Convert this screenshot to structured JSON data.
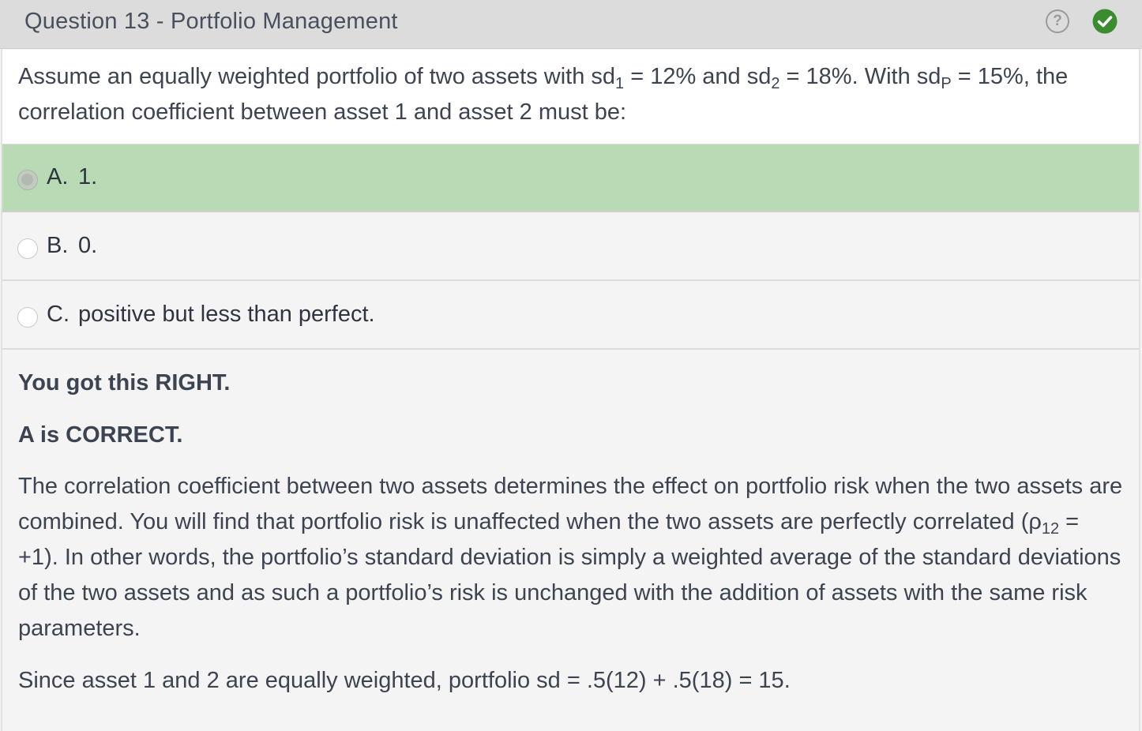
{
  "header": {
    "title": "Question 13 - Portfolio Management",
    "help_glyph": "?",
    "help_icon": "question-circle-icon",
    "status_icon": "check-circle-icon",
    "status_color": "#3a8c2f"
  },
  "question": {
    "part1": "Assume an equally weighted portfolio of two assets with sd",
    "sub1": "1",
    "part2": " = 12% and sd",
    "sub2": "2",
    "part3": " = 18%.  With sd",
    "subP": "P",
    "part4": " = 15%, the correlation coefficient between asset 1 and asset 2 must be:"
  },
  "options": [
    {
      "letter": "A.",
      "text": "1.",
      "selected": true,
      "highlight_color": "#b8dab5"
    },
    {
      "letter": "B.",
      "text": "0.",
      "selected": false
    },
    {
      "letter": "C.",
      "text": "positive but less than perfect.",
      "selected": false
    }
  ],
  "feedback": {
    "result": "You got this RIGHT.",
    "verdict": "A is CORRECT.",
    "explanation_part1": "The correlation coefficient between two assets determines the effect on portfolio risk when the two assets are combined.  You will find that portfolio risk is unaffected when the two assets are perfectly correlated (ρ",
    "explanation_sub": "12",
    "explanation_part2": " = +1).  In other words, the portfolio’s standard deviation is simply a weighted average of the standard deviations of the two assets and as such a portfolio’s risk is unchanged with the addition of assets with the same risk parameters.",
    "calculation": "Since asset 1 and 2 are equally weighted, portfolio sd = .5(12) + .5(18) = 15."
  }
}
